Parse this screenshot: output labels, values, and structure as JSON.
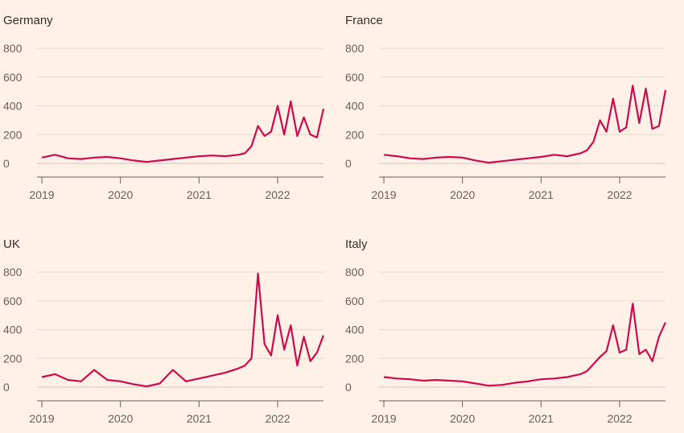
{
  "colors": {
    "background": "#fff1e5",
    "series": "#cc0a4d",
    "grid": "#e6d9ce"
  },
  "chart_data": [
    {
      "type": "line",
      "title": "Germany",
      "ylim": [
        -40,
        820
      ],
      "yticks": [
        "800",
        "600",
        "400",
        "200",
        "0"
      ],
      "xticks": [
        "2019",
        "2020",
        "2021",
        "2022"
      ],
      "xlim": [
        "2019-01",
        "2022-08"
      ],
      "series": [
        {
          "x": [
            "2019-01",
            "2019-03",
            "2019-05",
            "2019-07",
            "2019-09",
            "2019-11",
            "2020-01",
            "2020-03",
            "2020-05",
            "2020-07",
            "2020-09",
            "2020-11",
            "2021-01",
            "2021-03",
            "2021-05",
            "2021-07",
            "2021-08",
            "2021-09",
            "2021-10",
            "2021-11",
            "2021-12",
            "2022-01",
            "2022-02",
            "2022-03",
            "2022-04",
            "2022-05",
            "2022-06",
            "2022-07",
            "2022-08"
          ],
          "values": [
            40,
            60,
            35,
            30,
            40,
            45,
            35,
            20,
            10,
            20,
            30,
            40,
            50,
            55,
            50,
            60,
            70,
            120,
            260,
            190,
            220,
            400,
            200,
            430,
            190,
            320,
            200,
            180,
            380
          ]
        }
      ]
    },
    {
      "type": "line",
      "title": "France",
      "ylim": [
        -40,
        820
      ],
      "yticks": [
        "800",
        "600",
        "400",
        "200",
        "0"
      ],
      "xticks": [
        "2019",
        "2020",
        "2021",
        "2022"
      ],
      "xlim": [
        "2019-01",
        "2022-08"
      ],
      "series": [
        {
          "x": [
            "2019-01",
            "2019-03",
            "2019-05",
            "2019-07",
            "2019-09",
            "2019-11",
            "2020-01",
            "2020-03",
            "2020-05",
            "2020-07",
            "2020-09",
            "2020-11",
            "2021-01",
            "2021-03",
            "2021-05",
            "2021-07",
            "2021-08",
            "2021-09",
            "2021-10",
            "2021-11",
            "2021-12",
            "2022-01",
            "2022-02",
            "2022-03",
            "2022-04",
            "2022-05",
            "2022-06",
            "2022-07",
            "2022-08"
          ],
          "values": [
            60,
            50,
            35,
            30,
            40,
            45,
            40,
            20,
            5,
            15,
            25,
            35,
            45,
            60,
            50,
            70,
            90,
            150,
            300,
            220,
            450,
            220,
            250,
            540,
            280,
            520,
            240,
            260,
            510
          ]
        }
      ]
    },
    {
      "type": "line",
      "title": "UK",
      "ylim": [
        -40,
        820
      ],
      "yticks": [
        "800",
        "600",
        "400",
        "200",
        "0"
      ],
      "xticks": [
        "2019",
        "2020",
        "2021",
        "2022"
      ],
      "xlim": [
        "2019-01",
        "2022-08"
      ],
      "series": [
        {
          "x": [
            "2019-01",
            "2019-03",
            "2019-05",
            "2019-07",
            "2019-09",
            "2019-11",
            "2020-01",
            "2020-03",
            "2020-05",
            "2020-07",
            "2020-09",
            "2020-11",
            "2021-01",
            "2021-03",
            "2021-05",
            "2021-07",
            "2021-08",
            "2021-09",
            "2021-10",
            "2021-11",
            "2021-12",
            "2022-01",
            "2022-02",
            "2022-03",
            "2022-04",
            "2022-05",
            "2022-06",
            "2022-07",
            "2022-08"
          ],
          "values": [
            70,
            90,
            50,
            40,
            120,
            50,
            40,
            20,
            5,
            25,
            120,
            40,
            60,
            80,
            100,
            130,
            150,
            200,
            790,
            300,
            220,
            500,
            260,
            430,
            150,
            350,
            180,
            240,
            360
          ]
        }
      ]
    },
    {
      "type": "line",
      "title": "Italy",
      "ylim": [
        -40,
        820
      ],
      "yticks": [
        "800",
        "600",
        "400",
        "200",
        "0"
      ],
      "xticks": [
        "2019",
        "2020",
        "2021",
        "2022"
      ],
      "xlim": [
        "2019-01",
        "2022-08"
      ],
      "series": [
        {
          "x": [
            "2019-01",
            "2019-03",
            "2019-05",
            "2019-07",
            "2019-09",
            "2019-11",
            "2020-01",
            "2020-03",
            "2020-05",
            "2020-07",
            "2020-09",
            "2020-11",
            "2021-01",
            "2021-03",
            "2021-05",
            "2021-07",
            "2021-08",
            "2021-09",
            "2021-10",
            "2021-11",
            "2021-12",
            "2022-01",
            "2022-02",
            "2022-03",
            "2022-04",
            "2022-05",
            "2022-06",
            "2022-07",
            "2022-08"
          ],
          "values": [
            70,
            60,
            55,
            45,
            50,
            45,
            40,
            25,
            10,
            15,
            30,
            40,
            55,
            60,
            70,
            90,
            110,
            160,
            210,
            250,
            430,
            240,
            260,
            580,
            230,
            260,
            180,
            350,
            450
          ]
        }
      ]
    }
  ]
}
